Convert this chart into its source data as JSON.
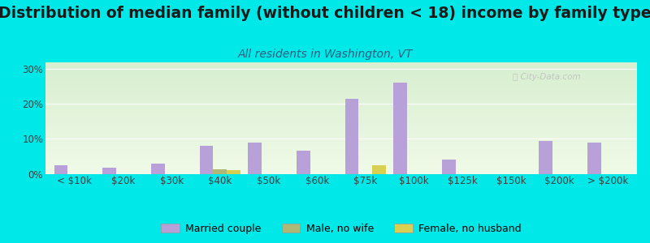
{
  "title": "Distribution of median family (without children < 18) income by family type",
  "subtitle": "All residents in Washington, VT",
  "categories": [
    "< $10k",
    "$20k",
    "$30k",
    "$40k",
    "$50k",
    "$60k",
    "$75k",
    "$100k",
    "$125k",
    "$150k",
    "$200k",
    "> $200k"
  ],
  "married_couple": [
    2.5,
    1.8,
    3.0,
    8.0,
    9.0,
    6.5,
    21.5,
    26.0,
    4.0,
    0.0,
    9.5,
    9.0
  ],
  "male_no_wife": [
    0.0,
    0.0,
    0.0,
    1.2,
    0.0,
    0.0,
    0.0,
    0.0,
    0.0,
    0.0,
    0.0,
    0.0
  ],
  "female_no_husband": [
    0.0,
    0.0,
    0.0,
    1.0,
    0.0,
    0.0,
    2.5,
    0.0,
    0.0,
    0.0,
    0.0,
    0.0
  ],
  "married_color": "#b8a0d8",
  "male_color": "#b0b878",
  "female_color": "#d8d050",
  "bg_color": "#00e8e8",
  "grad_top": "#d8efd0",
  "grad_bot": "#f0fae8",
  "ylim": [
    0,
    32
  ],
  "yticks": [
    0,
    10,
    20,
    30
  ],
  "ytick_labels": [
    "0%",
    "10%",
    "20%",
    "30%"
  ],
  "bar_width": 0.28,
  "title_fontsize": 13.5,
  "subtitle_fontsize": 10,
  "legend_fontsize": 9,
  "tick_fontsize": 8.5,
  "title_color": "#1a1a1a",
  "subtitle_color": "#2a6080",
  "tick_color": "#404040"
}
